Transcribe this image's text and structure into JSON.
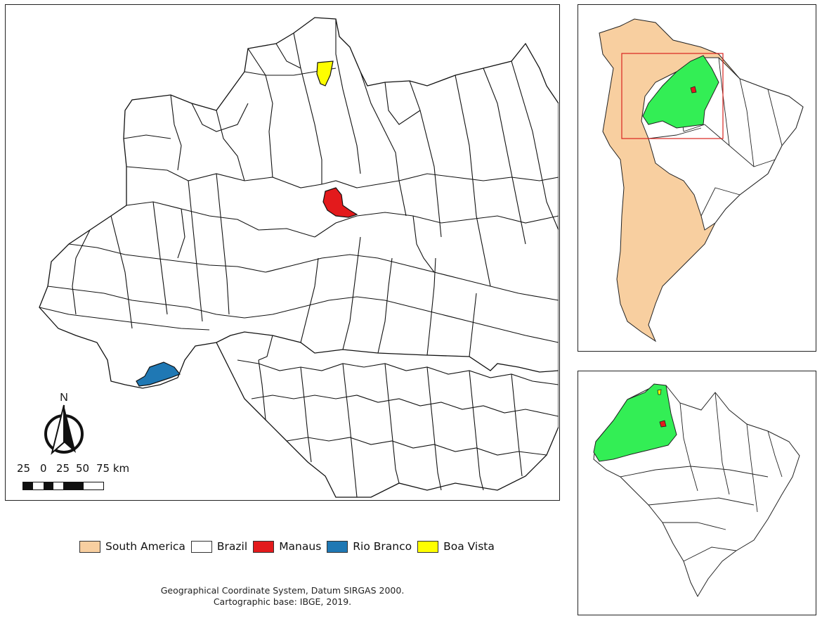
{
  "map": {
    "north_label": "N",
    "scale": {
      "labels": [
        "25",
        "0",
        "25",
        "50",
        "75 km"
      ]
    }
  },
  "legend": {
    "items": [
      {
        "label": "South America",
        "color": "#F8CFA0"
      },
      {
        "label": "Brazil",
        "color": "#FFFFFF"
      },
      {
        "label": "Manaus",
        "color": "#E31A1C"
      },
      {
        "label": "Rio Branco",
        "color": "#1F78B4"
      },
      {
        "label": "Boa Vista",
        "color": "#FFFF00"
      }
    ]
  },
  "credits": {
    "line1": "Geographical Coordinate System, Datum SIRGAS 2000.",
    "line2": "Cartographic base: IBGE, 2019."
  },
  "colors": {
    "study_area": "#33EE55",
    "extent_box": "#D9231F"
  }
}
